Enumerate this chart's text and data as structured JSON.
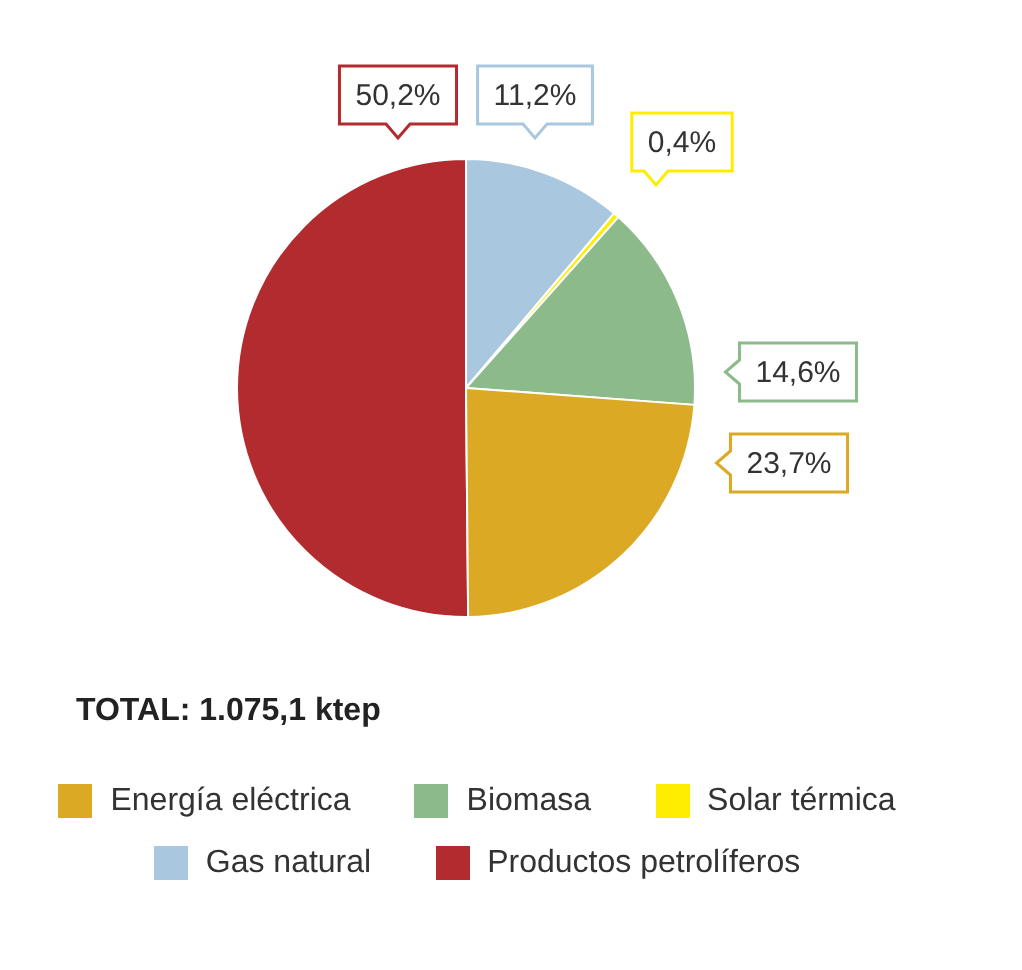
{
  "chart_data": {
    "type": "pie",
    "categories": [
      "Energía eléctrica",
      "Biomasa",
      "Solar térmica",
      "Gas natural",
      "Productos petrolíferos"
    ],
    "values": [
      23.7,
      14.6,
      0.4,
      11.2,
      50.2
    ],
    "colors": [
      "#dba923",
      "#8dba8a",
      "#ffed00",
      "#a9c7de",
      "#b22b2f"
    ],
    "value_labels": [
      "23,7%",
      "14,6%",
      "0,4%",
      "11,2%",
      "50,2%"
    ],
    "legend": "bottom",
    "annotations": [
      "TOTAL: 1.075,1 ktep"
    ]
  }
}
